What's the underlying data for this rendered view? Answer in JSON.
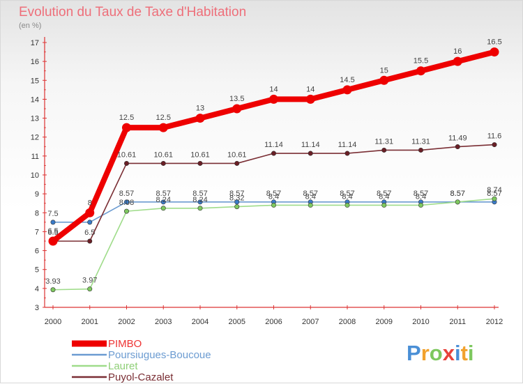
{
  "chart_data": {
    "type": "line",
    "title": "Evolution du Taux de Taxe d'Habitation",
    "ylabel": "(en %)",
    "xlabel": "",
    "categories": [
      "2000",
      "2001",
      "2002",
      "2003",
      "2004",
      "2005",
      "2006",
      "2007",
      "2008",
      "2009",
      "2010",
      "2011",
      "2012"
    ],
    "ylim": [
      3,
      17
    ],
    "yticks": [
      3,
      4,
      5,
      6,
      7,
      8,
      9,
      10,
      11,
      12,
      13,
      14,
      15,
      16,
      17
    ],
    "series": [
      {
        "name": "Poursiugues-Boucoue",
        "color": "#6b9bd1",
        "dot": "#3a7bc8",
        "values": [
          7.5,
          7.5,
          8.57,
          8.57,
          8.57,
          8.57,
          8.57,
          8.57,
          8.57,
          8.57,
          8.57,
          8.57,
          8.57
        ],
        "labels": [
          "7.5",
          "",
          "8.57",
          "8.57",
          "8.57",
          "8.57",
          "8.57",
          "8.57",
          "8.57",
          "8.57",
          "8.57",
          "8.57",
          "8.57"
        ]
      },
      {
        "name": "Lauret",
        "color": "#9fdc8a",
        "dot": "#7ec85f",
        "values": [
          3.93,
          3.97,
          8.08,
          8.24,
          8.24,
          8.32,
          8.4,
          8.4,
          8.4,
          8.4,
          8.4,
          8.57,
          8.74
        ],
        "labels": [
          "3.93",
          "3.97",
          "8.08",
          "8.24",
          "8.24",
          "8.32",
          "8.4",
          "8.4",
          "8.4",
          "8.4",
          "8.4",
          "8.57",
          "8.74"
        ]
      },
      {
        "name": "Puyol-Cazalet",
        "color": "#7a2e34",
        "dot": "#6a1f26",
        "values": [
          6.5,
          6.5,
          10.61,
          10.61,
          10.61,
          10.61,
          11.14,
          11.14,
          11.14,
          11.31,
          11.31,
          11.49,
          11.6
        ],
        "labels": [
          "6.5",
          "6.5",
          "10.61",
          "10.61",
          "10.61",
          "10.61",
          "11.14",
          "11.14",
          "11.14",
          "11.31",
          "11.31",
          "11.49",
          "11.6"
        ]
      },
      {
        "name": "PIMBO",
        "color": "#ee0000",
        "dot": "#ee0000",
        "values": [
          6.5,
          8,
          12.5,
          12.5,
          13,
          13.5,
          14,
          14,
          14.5,
          15,
          15.5,
          16,
          16.5
        ],
        "labels": [
          "6.5",
          "8",
          "12.5",
          "12.5",
          "13",
          "13.5",
          "14",
          "14",
          "14.5",
          "15",
          "15.5",
          "16",
          "16.5"
        ]
      }
    ],
    "legend": [
      "PIMBO",
      "Poursiugues-Boucoue",
      "Lauret",
      "Puyol-Cazalet"
    ],
    "legend_position": "bottom-left",
    "grid": false
  },
  "header": {
    "title": "Evolution du Taux de Taxe d'Habitation",
    "unit": "(en %)"
  },
  "logo": {
    "letters": [
      "P",
      "r",
      "o",
      "x",
      "i",
      "t",
      "i"
    ]
  }
}
